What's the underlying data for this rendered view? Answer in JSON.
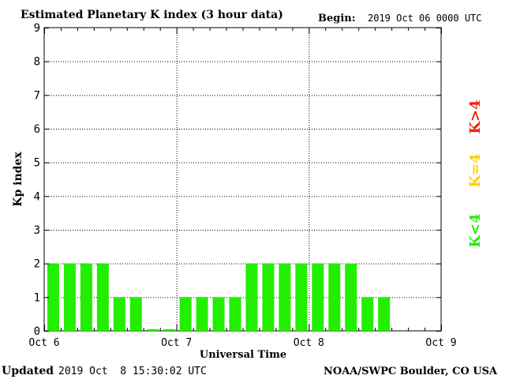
{
  "header": {
    "title": "Estimated Planetary K index (3 hour data)",
    "begin_label": "Begin:",
    "begin_value": "2019 Oct 06 0000 UTC"
  },
  "footer": {
    "updated_label": "Updated",
    "updated_value": "2019 Oct  8 15:30:02 UTC",
    "source": "NOAA/SWPC Boulder, CO USA"
  },
  "legend": {
    "low": "K<4",
    "mid": "K=4",
    "high": "K>4",
    "colors": {
      "low": "#22ee00",
      "mid": "#ffcc00",
      "high": "#ee2200"
    }
  },
  "chart_data": {
    "type": "bar",
    "ylabel": "Kp index",
    "xlabel": "Universal Time",
    "ylim": [
      0,
      9
    ],
    "yticks": [
      "0",
      "1",
      "2",
      "3",
      "4",
      "5",
      "6",
      "7",
      "8",
      "9"
    ],
    "xlim_days": [
      0,
      3
    ],
    "xticks": [
      "Oct 6",
      "Oct 7",
      "Oct 8",
      "Oct 9"
    ],
    "grid": true,
    "interval_hours": 3,
    "values": [
      2,
      2,
      2,
      2,
      1,
      1,
      0.05,
      0.05,
      1,
      1,
      1,
      1,
      2,
      2,
      2,
      2,
      2,
      2,
      2,
      1,
      1
    ],
    "bar_color": "#22ee00"
  }
}
